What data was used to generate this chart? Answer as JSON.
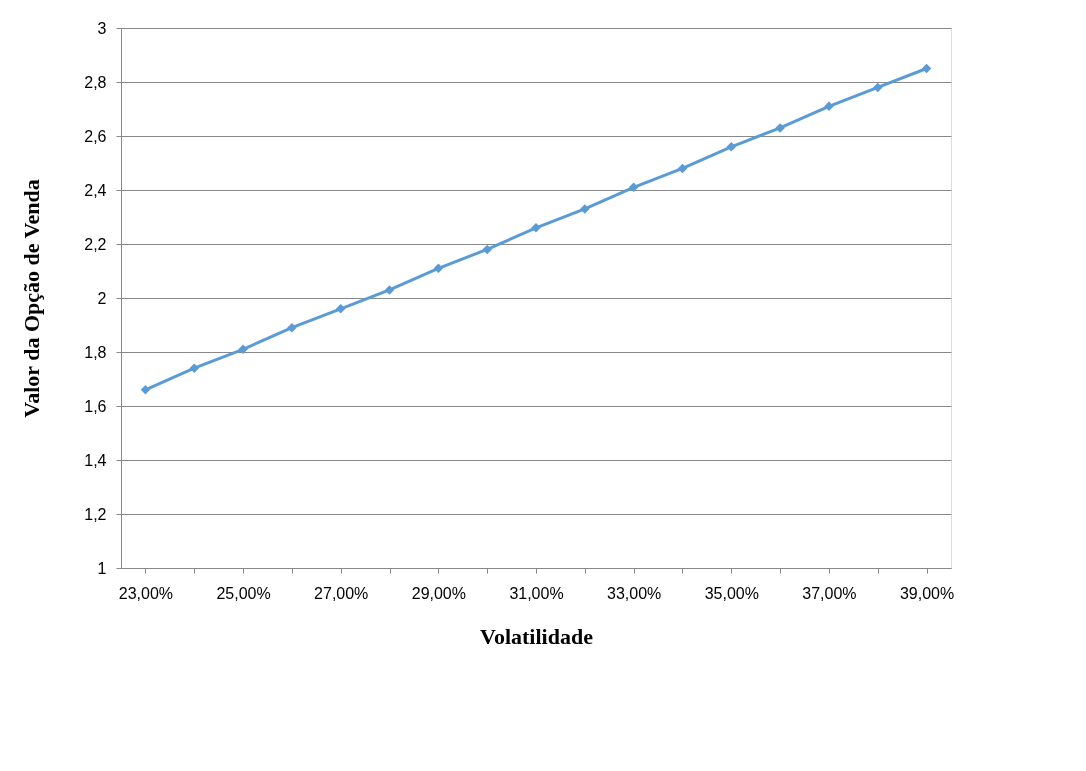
{
  "chart_data": {
    "type": "line",
    "xlabel": "Volatilidade",
    "ylabel": "Valor da Opção de Venda",
    "categories": [
      "23,00%",
      null,
      "25,00%",
      null,
      "27,00%",
      null,
      "29,00%",
      null,
      "31,00%",
      null,
      "33,00%",
      null,
      "35,00%",
      null,
      "37,00%",
      null,
      "39,00%"
    ],
    "series": [
      {
        "color": "#5b9bd5",
        "values": [
          1.66,
          1.74,
          1.81,
          1.89,
          1.96,
          2.03,
          2.11,
          2.18,
          2.26,
          2.33,
          2.41,
          2.48,
          2.56,
          2.63,
          2.71,
          2.78,
          2.85
        ]
      }
    ],
    "ylim": [
      1,
      3
    ],
    "yticks": [
      1,
      {
        "value": 1.2,
        "label": "1,2"
      },
      {
        "value": 1.4,
        "label": "1,4"
      },
      {
        "value": 1.6,
        "label": "1,6"
      },
      {
        "value": 1.8,
        "label": "1,8"
      },
      2,
      {
        "value": 2.2,
        "label": "2,2"
      },
      {
        "value": 2.4,
        "label": "2,4"
      },
      {
        "value": 2.6,
        "label": "2,6"
      },
      {
        "value": 2.8,
        "label": "2,8"
      },
      3
    ],
    "grid": "y",
    "marker": "diamond",
    "line_style": "solid"
  }
}
